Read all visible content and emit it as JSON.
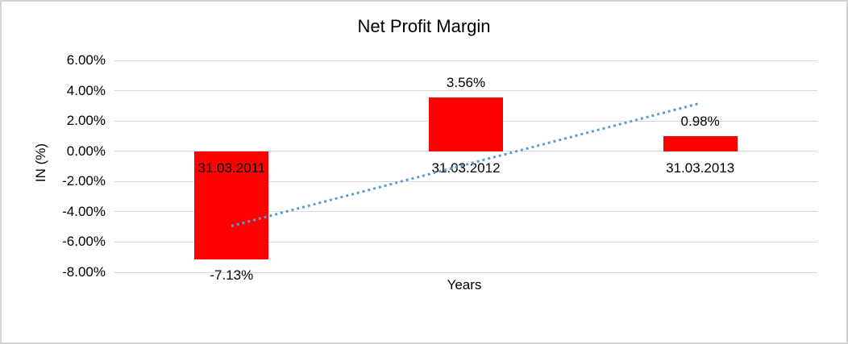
{
  "chart_data": {
    "type": "bar",
    "title": "Net Profit Margin",
    "ylabel": "IN (%)",
    "xlabel": "Years",
    "categories": [
      "31.03.2011",
      "31.03.2012",
      "31.03.2013"
    ],
    "values": [
      -7.13,
      3.56,
      0.98
    ],
    "value_labels": [
      "-7.13%",
      "3.56%",
      "0.98%"
    ],
    "ylim": [
      -8,
      6
    ],
    "y_tick_values": [
      6,
      4,
      2,
      0,
      -2,
      -4,
      -6,
      -8
    ],
    "y_tick_labels": [
      "6.00%",
      "4.00%",
      "2.00%",
      "0.00%",
      "-2.00%",
      "-4.00%",
      "-6.00%",
      "-8.00%"
    ],
    "grid": true,
    "legend": "none",
    "bar_color": "#FF0000",
    "gridline_color": "#d9d9d9",
    "trendline": {
      "style": "dotted",
      "color": "#5B9BD5",
      "start_pct": -4.92,
      "end_pct": 3.19
    }
  }
}
